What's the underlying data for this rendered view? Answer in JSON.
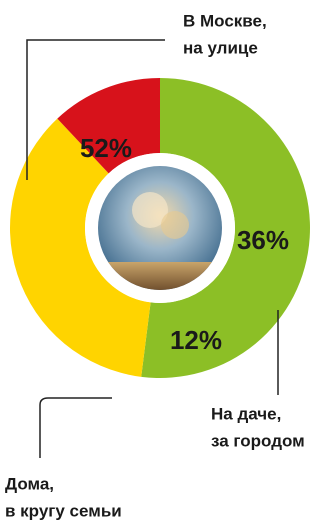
{
  "chart_data": {
    "type": "donut",
    "categories": [
      [
        "В Москве,",
        "на улице"
      ],
      [
        "На даче,",
        "за городом"
      ],
      [
        "Дома,",
        "в кругу семьи"
      ]
    ],
    "values": [
      52,
      36,
      12
    ],
    "value_labels": [
      "52%",
      "36%",
      "12%"
    ],
    "colors": [
      "#8cbf26",
      "#ffd400",
      "#d7121b"
    ]
  }
}
